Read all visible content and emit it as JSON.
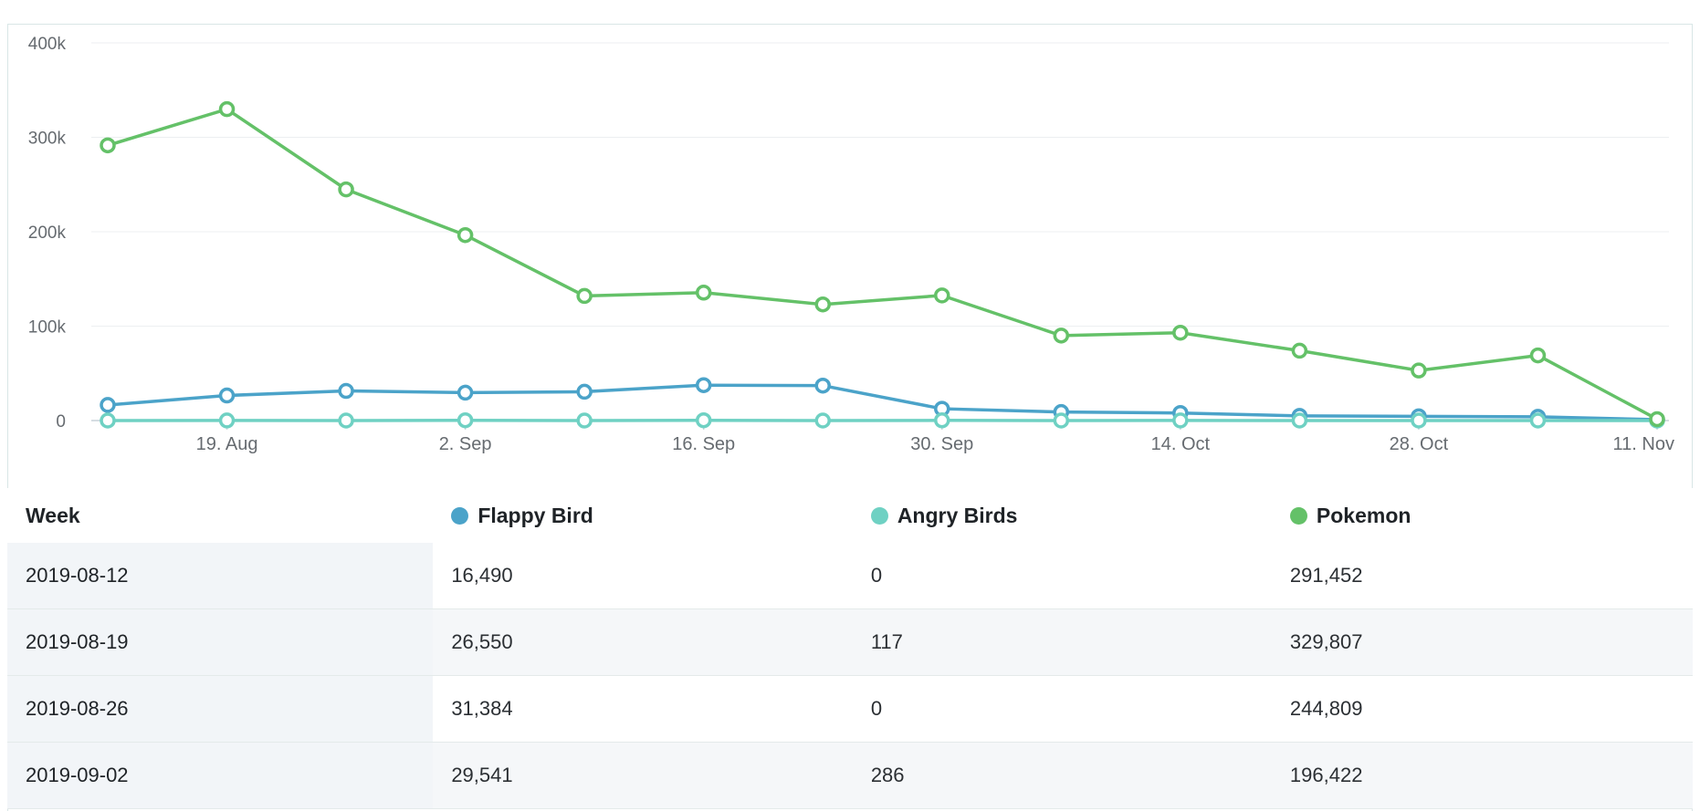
{
  "colors": {
    "flappy": "#4ba3c9",
    "angry": "#6fd1c3",
    "pokemon": "#64c168",
    "grid": "#eceff1",
    "axis": "#c9d2d8"
  },
  "chart_data": {
    "type": "line",
    "x": [
      "2019-08-12",
      "2019-08-19",
      "2019-08-26",
      "2019-09-02",
      "2019-09-09",
      "2019-09-16",
      "2019-09-23",
      "2019-09-30",
      "2019-10-07",
      "2019-10-14",
      "2019-10-21",
      "2019-10-28",
      "2019-11-04",
      "2019-11-11"
    ],
    "x_ticks": [
      {
        "date": "2019-08-19",
        "label": "19. Aug"
      },
      {
        "date": "2019-09-02",
        "label": "2. Sep"
      },
      {
        "date": "2019-09-16",
        "label": "16. Sep"
      },
      {
        "date": "2019-09-30",
        "label": "30. Sep"
      },
      {
        "date": "2019-10-14",
        "label": "14. Oct"
      },
      {
        "date": "2019-10-28",
        "label": "28. Oct"
      },
      {
        "date": "2019-11-11",
        "label": "11. Nov"
      }
    ],
    "y_ticks": [
      {
        "value": 0,
        "label": "0"
      },
      {
        "value": 100000,
        "label": "100k"
      },
      {
        "value": 200000,
        "label": "200k"
      },
      {
        "value": 300000,
        "label": "300k"
      },
      {
        "value": 400000,
        "label": "400k"
      }
    ],
    "ylim": [
      0,
      400000
    ],
    "grid": true,
    "series": [
      {
        "name": "Flappy Bird",
        "color": "#4ba3c9",
        "values": [
          16490,
          26550,
          31384,
          29541,
          30500,
          37500,
          37000,
          12500,
          9000,
          8000,
          5000,
          4500,
          4000,
          1000
        ]
      },
      {
        "name": "Angry Birds",
        "color": "#6fd1c3",
        "values": [
          0,
          117,
          0,
          286,
          0,
          300,
          0,
          200,
          0,
          100,
          0,
          0,
          0,
          0
        ]
      },
      {
        "name": "Pokemon",
        "color": "#64c168",
        "values": [
          291452,
          329807,
          244809,
          196422,
          132000,
          135500,
          123000,
          132500,
          90000,
          93000,
          74000,
          53000,
          69000,
          1500
        ]
      }
    ]
  },
  "table": {
    "headers": {
      "week": "Week",
      "s1": "Flappy Bird",
      "s2": "Angry Birds",
      "s3": "Pokemon"
    },
    "rows": [
      {
        "week": "2019-08-12",
        "s1": "16,490",
        "s2": "0",
        "s3": "291,452"
      },
      {
        "week": "2019-08-19",
        "s1": "26,550",
        "s2": "117",
        "s3": "329,807"
      },
      {
        "week": "2019-08-26",
        "s1": "31,384",
        "s2": "0",
        "s3": "244,809"
      },
      {
        "week": "2019-09-02",
        "s1": "29,541",
        "s2": "286",
        "s3": "196,422"
      }
    ]
  }
}
